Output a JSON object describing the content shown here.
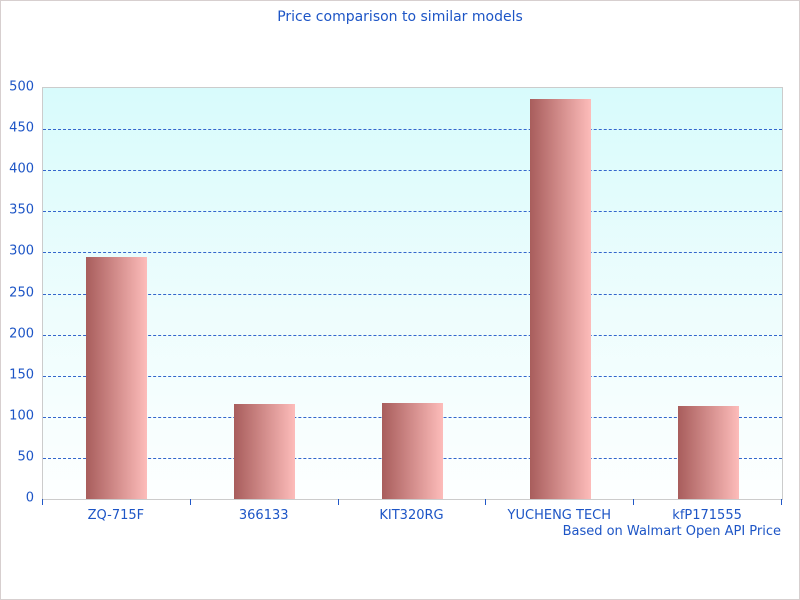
{
  "chart_data": {
    "type": "bar",
    "title": "Price comparison to similar models",
    "caption": "Based on Walmart Open API Price",
    "categories": [
      "ZQ-715F",
      "366133",
      "KIT320RG",
      "YUCHENG TECH",
      "kfP171555"
    ],
    "values": [
      295,
      115,
      117,
      487,
      113
    ],
    "xlabel": "",
    "ylabel": "",
    "ylim": [
      0,
      500
    ],
    "ytick_step": 50,
    "grid": "dashed horizontal lines at every 50 except 0 and 500",
    "legend_position": "none",
    "colors": {
      "text": "#1d55c6",
      "gridline": "#3366cc",
      "bar_gradient_left": "#a85d5c",
      "bar_gradient_right": "#fdbcba",
      "plot_bg_top": "#d8fbfc",
      "plot_bg_bottom": "#fdffff",
      "plot_border": "#cccccc",
      "axis_tick": "#2158c8"
    }
  }
}
